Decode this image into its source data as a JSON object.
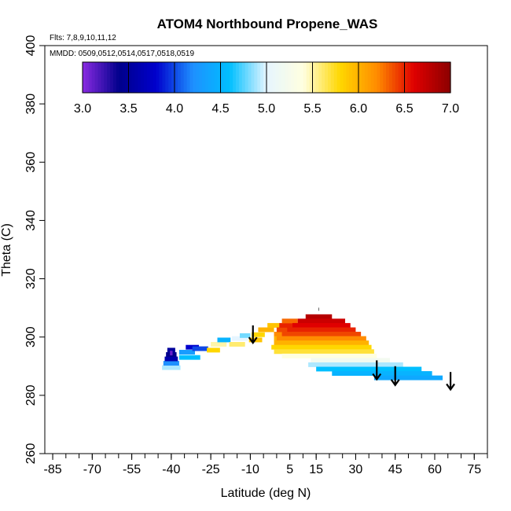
{
  "chart_data": {
    "type": "heatmap",
    "title": "ATOM4 Northbound Propene_WAS",
    "flights_label": "Flts: 7,8,9,10,11,12",
    "dates_label": "MMDD: 0509,0512,0514,0517,0518,0519",
    "xlabel": "Latitude (deg N)",
    "ylabel": "Theta (C)",
    "xlim": [
      -88,
      80
    ],
    "ylim": [
      260,
      400
    ],
    "x_ticks": [
      -85,
      -70,
      -55,
      -40,
      -25,
      -10,
      5,
      15,
      30,
      45,
      60,
      75
    ],
    "y_ticks": [
      260,
      280,
      300,
      320,
      340,
      360,
      380,
      400
    ],
    "colorbar": {
      "min": 3.0,
      "max": 7.0,
      "tick_values": [
        3.0,
        3.5,
        4.0,
        4.5,
        5.0,
        5.5,
        6.0,
        6.5,
        7.0
      ],
      "tick_labels": [
        "3.0",
        "3.5",
        "4.0",
        "4.5",
        "5.0",
        "5.5",
        "6.0",
        "6.5",
        "7.0"
      ],
      "colors": [
        "#8a2be2",
        "#00008b",
        "#0000cd",
        "#1e90ff",
        "#00bfff",
        "#e6f5ff",
        "#ffffe0",
        "#ffd700",
        "#ff8c00",
        "#e00000",
        "#8b0000"
      ]
    },
    "cells": [
      {
        "lat": -40,
        "theta": 289.5,
        "value": 4.9,
        "w": 7
      },
      {
        "lat": -40,
        "theta": 291.0,
        "value": 4.2,
        "w": 6
      },
      {
        "lat": -40,
        "theta": 292.5,
        "value": 3.6,
        "w": 5
      },
      {
        "lat": -40,
        "theta": 294.0,
        "value": 3.4,
        "w": 4
      },
      {
        "lat": -40,
        "theta": 295.5,
        "value": 3.5,
        "w": 3
      },
      {
        "lat": -40,
        "theta": 294.5,
        "value": 3.1,
        "w": 1
      },
      {
        "lat": -33,
        "theta": 293.0,
        "value": 4.6,
        "w": 8
      },
      {
        "lat": -34,
        "theta": 294.8,
        "value": 4.3,
        "w": 6
      },
      {
        "lat": -32,
        "theta": 296.5,
        "value": 3.8,
        "w": 5
      },
      {
        "lat": -29,
        "theta": 296.0,
        "value": 4.0,
        "w": 6
      },
      {
        "lat": -24,
        "theta": 295.5,
        "value": 5.8,
        "w": 5
      },
      {
        "lat": -22,
        "theta": 297.5,
        "value": 5.5,
        "w": 6
      },
      {
        "lat": -20,
        "theta": 299.0,
        "value": 4.5,
        "w": 5
      },
      {
        "lat": -15,
        "theta": 297.5,
        "value": 5.6,
        "w": 6
      },
      {
        "lat": -14,
        "theta": 299.5,
        "value": 5.0,
        "w": 6
      },
      {
        "lat": -12,
        "theta": 300.5,
        "value": 4.8,
        "w": 4
      },
      {
        "lat": -8,
        "theta": 299.0,
        "value": 5.9,
        "w": 5
      },
      {
        "lat": -7,
        "theta": 300.8,
        "value": 5.8,
        "w": 5
      },
      {
        "lat": -4,
        "theta": 302.5,
        "value": 6.0,
        "w": 6
      },
      {
        "lat": -1,
        "theta": 304.0,
        "value": 5.9,
        "w": 5
      },
      {
        "lat": 2,
        "theta": 301.0,
        "value": 6.2,
        "w": 6
      },
      {
        "lat": 3,
        "theta": 302.5,
        "value": 6.4,
        "w": 6
      },
      {
        "lat": 4,
        "theta": 304.0,
        "value": 6.5,
        "w": 6
      },
      {
        "lat": 5,
        "theta": 305.5,
        "value": 6.3,
        "w": 6
      },
      {
        "lat": 2,
        "theta": 299.5,
        "value": 6.0,
        "w": 6
      },
      {
        "lat": 16,
        "theta": 307.0,
        "value": 6.8,
        "w": 10
      },
      {
        "lat": 17,
        "theta": 305.5,
        "value": 6.7,
        "w": 18
      },
      {
        "lat": 17,
        "theta": 304.0,
        "value": 6.6,
        "w": 22
      },
      {
        "lat": 17,
        "theta": 302.5,
        "value": 6.5,
        "w": 26
      },
      {
        "lat": 17,
        "theta": 301.0,
        "value": 6.4,
        "w": 30
      },
      {
        "lat": 17,
        "theta": 299.5,
        "value": 6.2,
        "w": 34
      },
      {
        "lat": 17,
        "theta": 298.0,
        "value": 6.0,
        "w": 36
      },
      {
        "lat": 17,
        "theta": 296.5,
        "value": 5.8,
        "w": 38
      },
      {
        "lat": 18,
        "theta": 295.0,
        "value": 5.7,
        "w": 38
      },
      {
        "lat": 20,
        "theta": 293.5,
        "value": 5.4,
        "w": 36
      },
      {
        "lat": 28,
        "theta": 292.0,
        "value": 5.2,
        "w": 30
      },
      {
        "lat": 30,
        "theta": 290.5,
        "value": 4.9,
        "w": 36
      },
      {
        "lat": 35,
        "theta": 289.0,
        "value": 4.6,
        "w": 40
      },
      {
        "lat": 40,
        "theta": 287.5,
        "value": 4.5,
        "w": 38
      },
      {
        "lat": 50,
        "theta": 286.0,
        "value": 4.4,
        "w": 26
      }
    ],
    "arrows": [
      {
        "lat": -9,
        "theta_top": 304,
        "theta_tip": 298
      },
      {
        "lat": 38,
        "theta_top": 292,
        "theta_tip": 285.5
      },
      {
        "lat": 45,
        "theta_top": 290,
        "theta_tip": 283.5
      },
      {
        "lat": 66,
        "theta_top": 288,
        "theta_tip": 282
      }
    ],
    "tropopause_mark": {
      "lat": 16,
      "theta": 309
    }
  }
}
